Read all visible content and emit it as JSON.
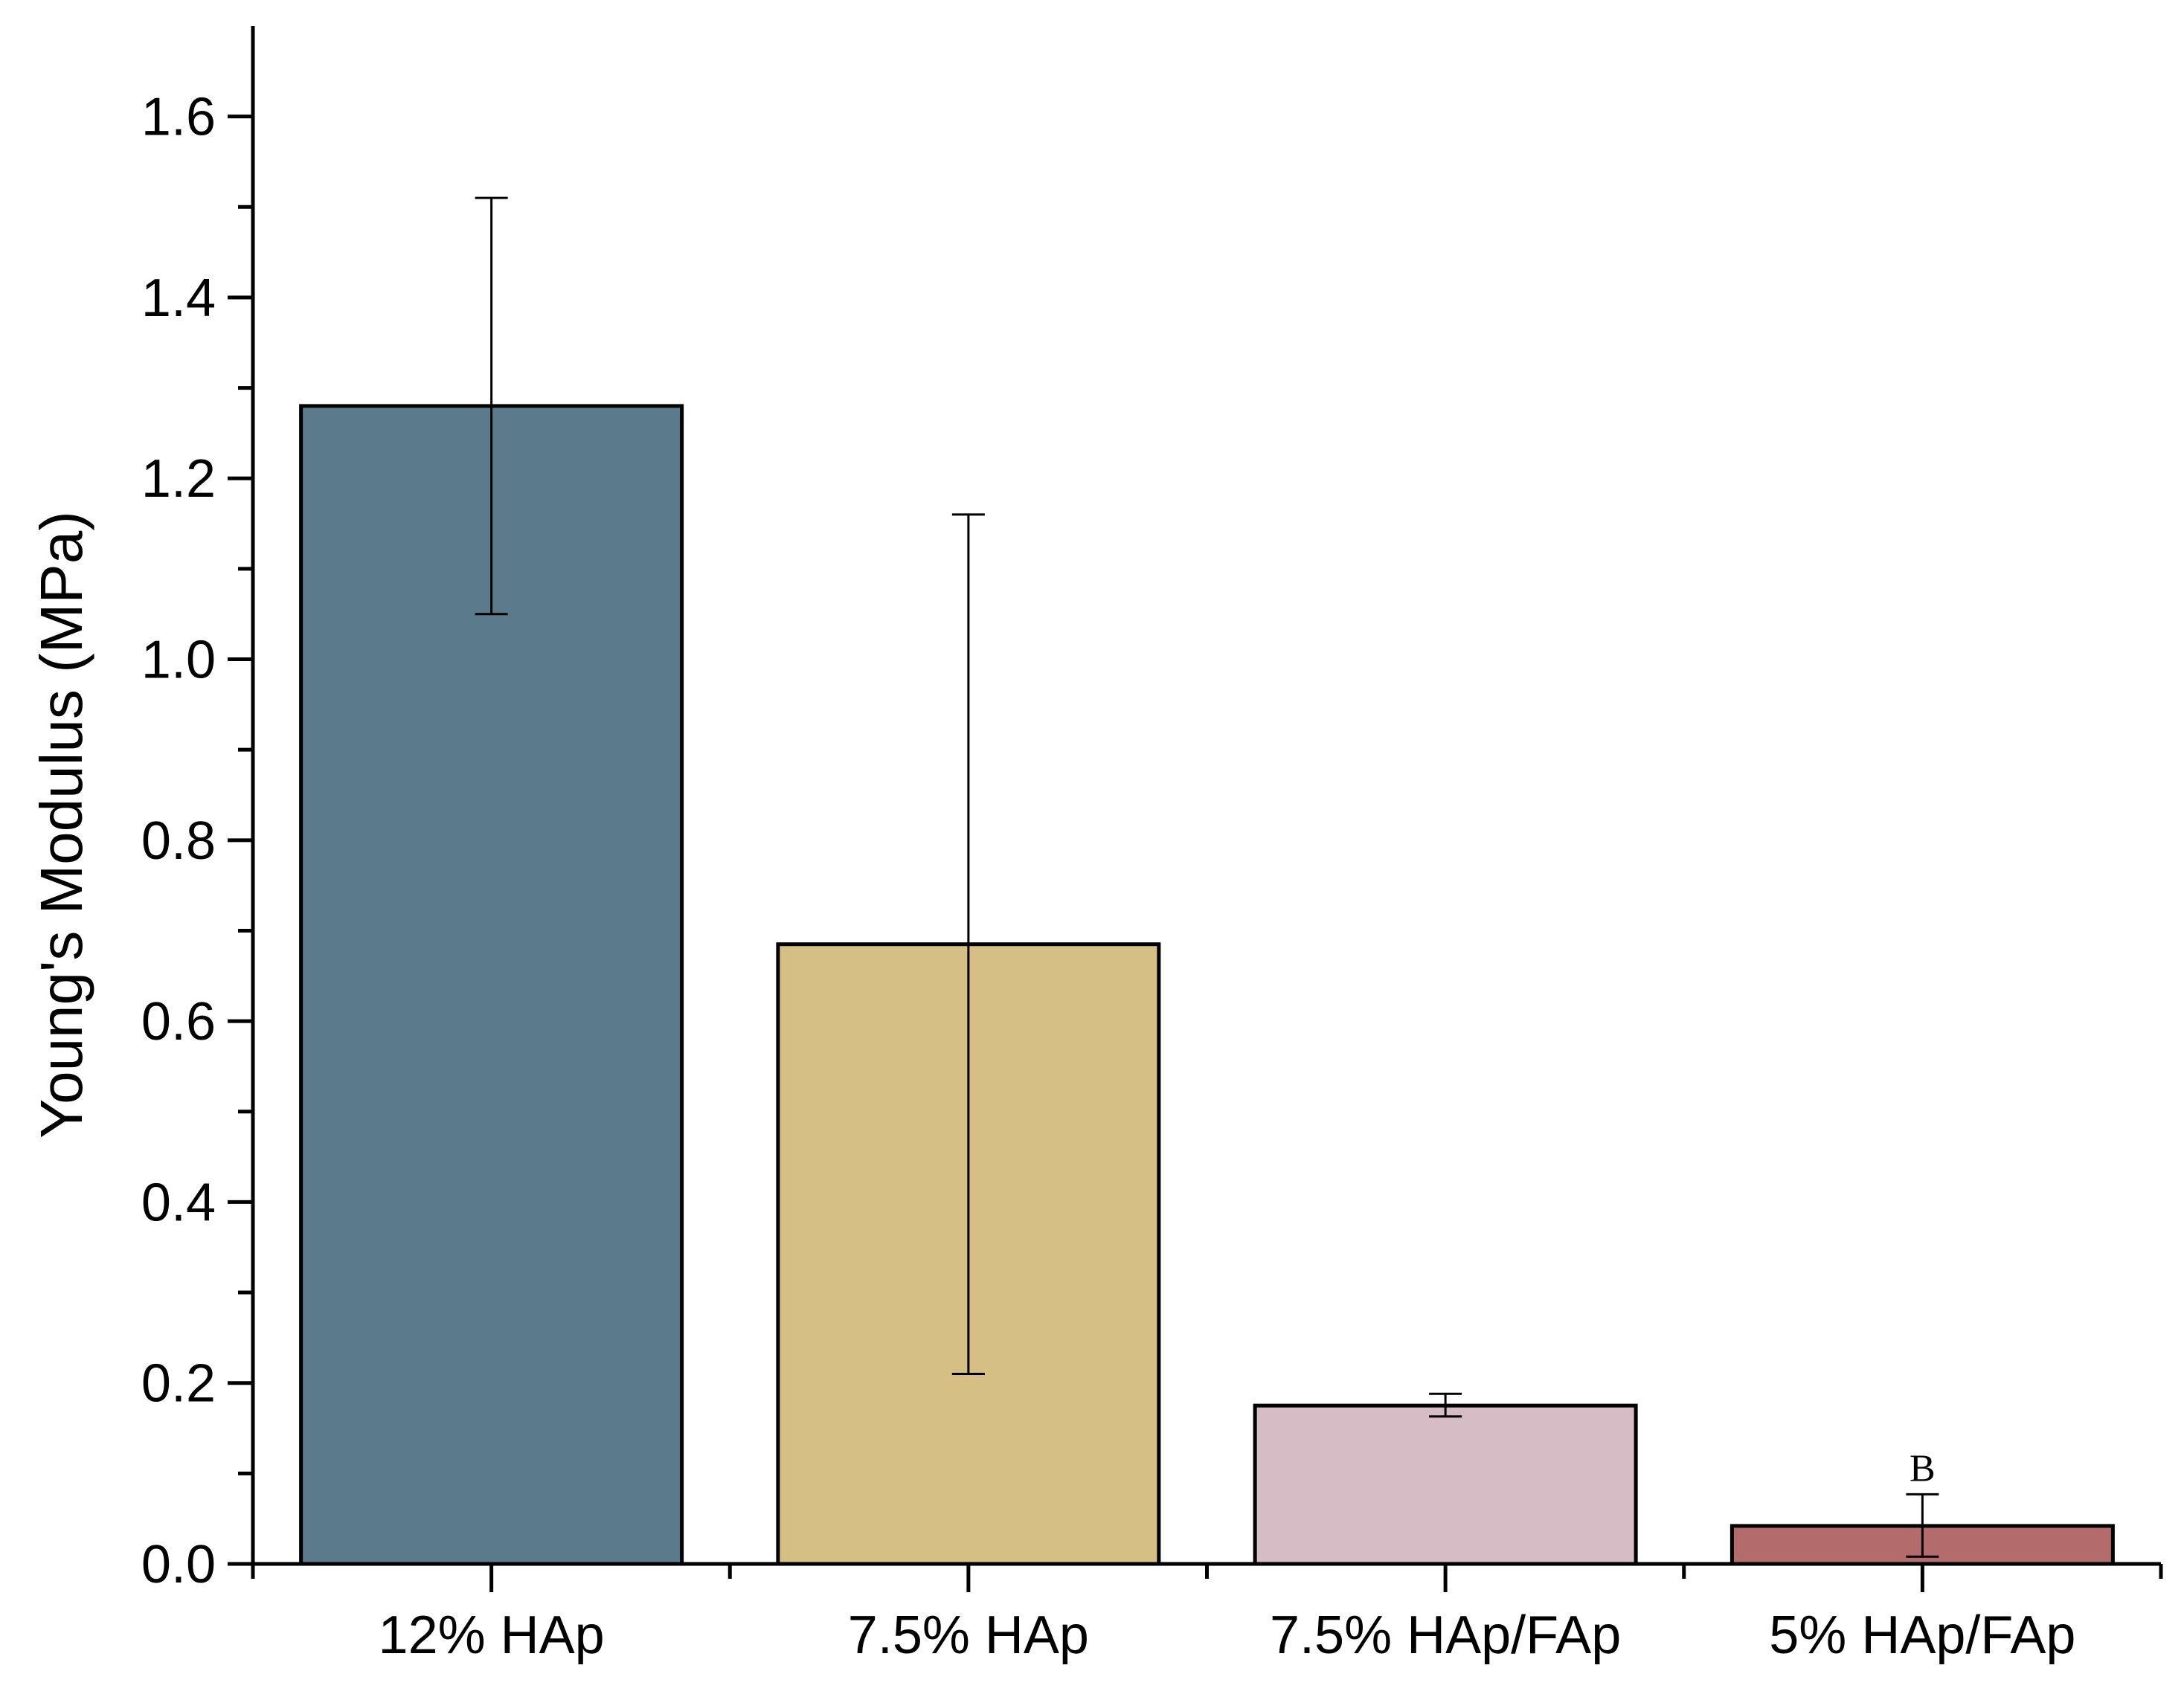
{
  "chart_data": {
    "type": "bar",
    "title": "",
    "xlabel": "",
    "ylabel": "Young's Modulus (MPa)",
    "ylim": [
      0,
      1.7
    ],
    "yticks": [
      "0.0",
      "0.2",
      "0.4",
      "0.6",
      "0.8",
      "1.0",
      "1.2",
      "1.4",
      "1.6"
    ],
    "grid": false,
    "legend": "none",
    "categories": [
      "12% HAp",
      "7.5% HAp",
      "7.5% HAp/FAp",
      "5% HAp/FAp"
    ],
    "values": [
      1.28,
      0.685,
      0.175,
      0.042
    ],
    "error_low": [
      1.05,
      0.21,
      0.163,
      0.008
    ],
    "error_high": [
      1.51,
      1.16,
      0.188,
      0.077
    ],
    "colors": [
      "#5b7a8b",
      "#d6bf84",
      "#d6bcc4",
      "#b46b6b"
    ],
    "annotations": [
      {
        "category": "5% HAp/FAp",
        "text": "B"
      }
    ]
  }
}
